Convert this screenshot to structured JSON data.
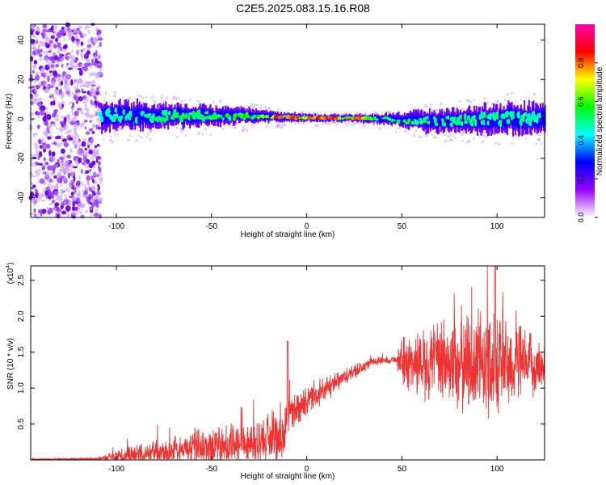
{
  "title": "C2E5.2025.083.15.16.R08",
  "chart_data": [
    {
      "type": "heatmap",
      "xlabel": "Height of straight line (km)",
      "ylabel": "Frequency (Hz)",
      "xlim": [
        -145,
        125
      ],
      "ylim": [
        -50,
        48
      ],
      "xticks": [
        -100,
        -50,
        0,
        50,
        100
      ],
      "yticks": [
        -40,
        -20,
        0,
        20,
        40
      ],
      "colorbar": {
        "label": "Normalized spectral amplitude",
        "range": [
          0,
          1
        ],
        "ticks": [
          "0.0",
          "0.2",
          "0.4",
          "0.6",
          "0.8"
        ],
        "colors": [
          "#ffffff",
          "#9900ff",
          "#0000ff",
          "#00ffff",
          "#00ff00",
          "#ffff00",
          "#ff0000",
          "#ff00aa"
        ]
      },
      "noise_region_x": [
        -145,
        -108
      ],
      "ridge_profile": [
        {
          "x": -108,
          "center": 2,
          "halfwidth": 6,
          "peak": 0.45
        },
        {
          "x": -80,
          "center": 1.5,
          "halfwidth": 5,
          "peak": 0.5
        },
        {
          "x": -50,
          "center": 1.5,
          "halfwidth": 4,
          "peak": 0.55
        },
        {
          "x": -30,
          "center": 1.5,
          "halfwidth": 3,
          "peak": 0.6
        },
        {
          "x": -15,
          "center": 1,
          "halfwidth": 2,
          "peak": 0.95
        },
        {
          "x": 0,
          "center": 0.5,
          "halfwidth": 1.5,
          "peak": 0.85
        },
        {
          "x": 10,
          "center": 0.5,
          "halfwidth": 1.5,
          "peak": 0.9
        },
        {
          "x": 25,
          "center": 0.5,
          "halfwidth": 1.5,
          "peak": 0.95
        },
        {
          "x": 40,
          "center": 0,
          "halfwidth": 2,
          "peak": 0.6
        },
        {
          "x": 60,
          "center": -1,
          "halfwidth": 4,
          "peak": 0.5
        },
        {
          "x": 85,
          "center": -1,
          "halfwidth": 5,
          "peak": 0.5
        },
        {
          "x": 105,
          "center": 0.5,
          "halfwidth": 6,
          "peak": 0.5
        },
        {
          "x": 125,
          "center": 0,
          "halfwidth": 6,
          "peak": 0.45
        }
      ]
    },
    {
      "type": "line",
      "xlabel": "Height of straight line (km)",
      "ylabel": "SNR (10 * v/v)",
      "yscale_label": "(x10",
      "yscale_exp": "4",
      "xlim": [
        -145,
        125
      ],
      "ylim": [
        0,
        27000
      ],
      "xticks": [
        -100,
        -50,
        0,
        50,
        100
      ],
      "yticks": [
        "0.5",
        "1.0",
        "1.5",
        "2.0",
        "2.5"
      ],
      "ytick_values": [
        5000,
        10000,
        15000,
        20000,
        25000
      ],
      "color": "#ee3333",
      "envelope": [
        {
          "x": -145,
          "base": 100,
          "spread": 50
        },
        {
          "x": -110,
          "base": 150,
          "spread": 150
        },
        {
          "x": -95,
          "base": 600,
          "spread": 1300
        },
        {
          "x": -70,
          "base": 1200,
          "spread": 2000
        },
        {
          "x": -40,
          "base": 2000,
          "spread": 3000
        },
        {
          "x": -12,
          "base": 3200,
          "spread": 3500
        },
        {
          "x": -10,
          "base": 6500,
          "spread": 2500
        },
        {
          "x": 0,
          "base": 8000,
          "spread": 2000
        },
        {
          "x": 20,
          "base": 11500,
          "spread": 1200
        },
        {
          "x": 35,
          "base": 13700,
          "spread": 600
        },
        {
          "x": 47,
          "base": 14000,
          "spread": 500
        },
        {
          "x": 50,
          "base": 13500,
          "spread": 3500
        },
        {
          "x": 80,
          "base": 13500,
          "spread": 7000
        },
        {
          "x": 100,
          "base": 13500,
          "spread": 7500
        },
        {
          "x": 125,
          "base": 13000,
          "spread": 3000
        }
      ]
    }
  ]
}
